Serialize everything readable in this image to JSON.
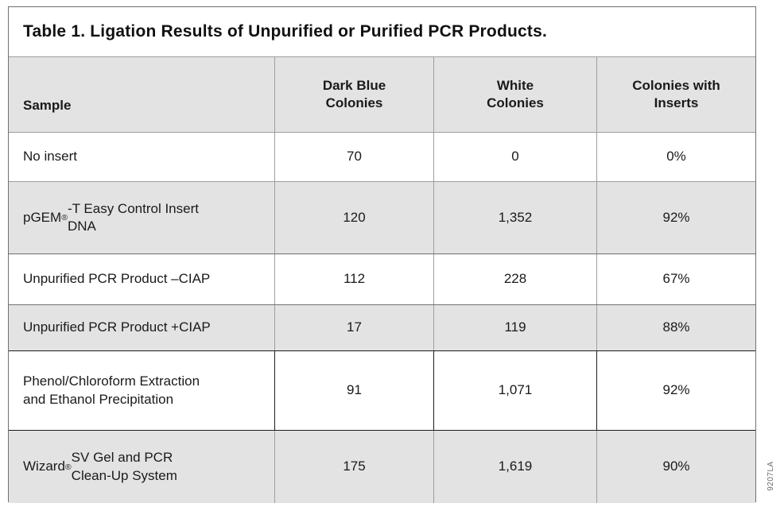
{
  "title": "Table 1. Ligation Results of Unpurified or Purified PCR Products.",
  "figure_number": "9207LA",
  "colors": {
    "stripe": "#e3e3e3",
    "border_light": "#9e9e9e",
    "border_dark": "#1c1c1c",
    "text": "#1a1a1a"
  },
  "table": {
    "headers": {
      "sample": "Sample",
      "dark_blue": "Dark Blue\nColonies",
      "white": "White\nColonies",
      "inserts": "Colonies with\nInserts"
    },
    "rows": [
      {
        "sample_pre": "No insert",
        "sample_reg": "",
        "sample_post": "",
        "dark_blue": "70",
        "white": "0",
        "inserts": "0%"
      },
      {
        "sample_pre": "pGEM",
        "sample_reg": "®",
        "sample_post": "-T Easy Control Insert\nDNA",
        "dark_blue": "120",
        "white": "1,352",
        "inserts": "92%"
      },
      {
        "sample_pre": "Unpurified PCR Product –CIAP",
        "sample_reg": "",
        "sample_post": "",
        "dark_blue": "112",
        "white": "228",
        "inserts": "67%"
      },
      {
        "sample_pre": "Unpurified PCR Product +CIAP",
        "sample_reg": "",
        "sample_post": "",
        "dark_blue": "17",
        "white": "119",
        "inserts": "88%"
      },
      {
        "sample_pre": "Phenol/Chloroform Extraction\nand Ethanol Precipitation",
        "sample_reg": "",
        "sample_post": "",
        "dark_blue": "91",
        "white": "1,071",
        "inserts": "92%"
      },
      {
        "sample_pre": "Wizard",
        "sample_reg": "®",
        "sample_post": " SV Gel and PCR\nClean-Up System",
        "dark_blue": "175",
        "white": "1,619",
        "inserts": "90%"
      }
    ]
  }
}
